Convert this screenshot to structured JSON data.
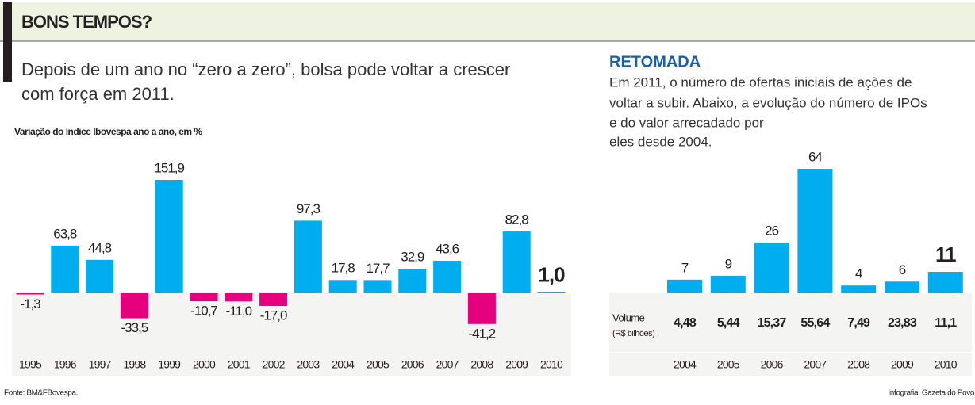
{
  "headline": "BONS TEMPOS?",
  "lead": [
    "Depois de um ano no “zero a zero”, bolsa pode voltar a crescer",
    "com força em 2011."
  ],
  "source": "Fonte: BM&FBovespa.",
  "credit": "Infografia: Gazeta do Povo",
  "chart_data": [
    {
      "type": "bar",
      "title": "Variação do índice Ibovespa ano a ano, em %",
      "categories": [
        "1995",
        "1996",
        "1997",
        "1998",
        "1999",
        "2000",
        "2001",
        "2002",
        "2003",
        "2004",
        "2005",
        "2006",
        "2007",
        "2008",
        "2009",
        "2010"
      ],
      "values": [
        -1.3,
        63.8,
        44.8,
        -33.5,
        151.9,
        -10.7,
        -11.0,
        -17.0,
        97.3,
        17.8,
        17.7,
        32.9,
        43.6,
        -41.2,
        82.8,
        1.0
      ],
      "value_labels": [
        "-1,3",
        "63,8",
        "44,8",
        "-33,5",
        "151,9",
        "-10,7",
        "-11,0",
        "-17,0",
        "97,3",
        "17,8",
        "17,7",
        "32,9",
        "43,6",
        "-41,2",
        "82,8",
        "1,0"
      ],
      "color": "#00aeef",
      "negative_color": "#e5007d"
    },
    {
      "type": "bar",
      "title": "RETOMADA",
      "description": [
        "Em 2011, o número de ofertas iniciais de ações de",
        "voltar a subir. Abaixo, a evolução do número de IPOs",
        "e do valor arrecadado por",
        "eles desde 2004."
      ],
      "categories": [
        "2004",
        "2005",
        "2006",
        "2007",
        "2008",
        "2009",
        "2010"
      ],
      "values": [
        7,
        9,
        26,
        64,
        4,
        6,
        11
      ],
      "color": "#00aeef",
      "table": {
        "row_label": "Volume",
        "row_unit": "(R$ bilhões)",
        "cells": [
          "4,48",
          "5,44",
          "15,37",
          "55,64",
          "7,49",
          "23,83",
          "11,1"
        ]
      }
    }
  ]
}
